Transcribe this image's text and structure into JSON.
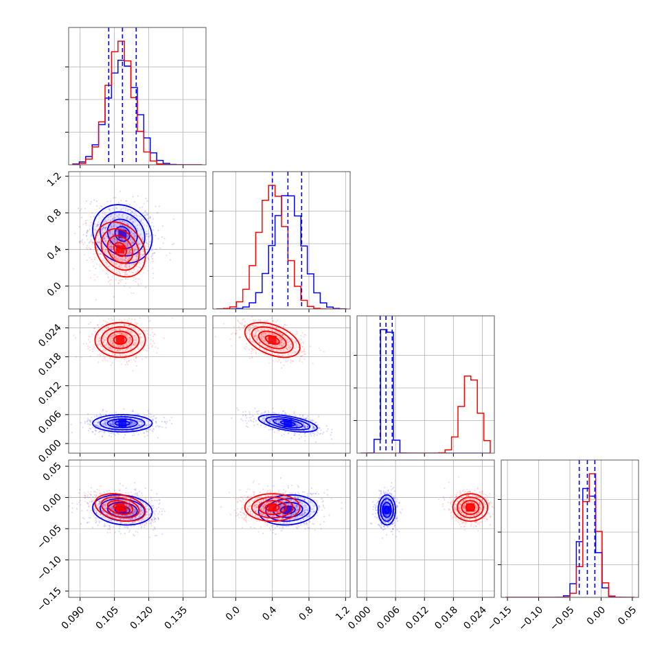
{
  "colors": {
    "series_a": "#0000ff",
    "series_b": "#ff0000",
    "grid": "#b0b0b0",
    "frame": "#555555"
  },
  "chart_data": {
    "type": "corner",
    "grid": true,
    "params": [
      {
        "range": [
          0.085,
          0.145
        ],
        "ticks": [
          0.09,
          0.105,
          0.12,
          0.135
        ],
        "tick_labels": [
          "0.090",
          "0.105",
          "0.120",
          "0.135"
        ]
      },
      {
        "range": [
          -0.25,
          1.25
        ],
        "ticks": [
          0.0,
          0.4,
          0.8,
          1.2
        ],
        "tick_labels": [
          "0.0",
          "0.4",
          "0.8",
          "1.2"
        ]
      },
      {
        "range": [
          -0.002,
          0.0265
        ],
        "ticks": [
          0.0,
          0.006,
          0.012,
          0.018,
          0.024
        ],
        "tick_labels": [
          "0.000",
          "0.006",
          "0.012",
          "0.018",
          "0.024"
        ]
      },
      {
        "range": [
          -0.16,
          0.06
        ],
        "ticks": [
          -0.15,
          -0.1,
          -0.05,
          0.0,
          0.05
        ],
        "tick_labels": [
          "−0.15",
          "−0.10",
          "−0.05",
          "0.00",
          "0.05"
        ]
      }
    ],
    "series": [
      {
        "color": "#0000ff",
        "mean": [
          0.1085,
          0.57,
          0.0042,
          -0.02
        ],
        "std": [
          0.0065,
          0.16,
          0.0009,
          0.012
        ],
        "corr": [
          [
            0,
            1,
            -0.15
          ],
          [
            1,
            2,
            -0.55
          ],
          [
            0,
            3,
            -0.15
          ],
          [
            1,
            3,
            0.1
          ],
          [
            0,
            2,
            0.0
          ],
          [
            2,
            3,
            0.0
          ]
        ],
        "quantiles": [
          [
            0.1025,
            0.1085,
            0.1145
          ],
          [
            0.4,
            0.57,
            0.72
          ],
          [
            0.0028,
            0.004,
            0.0053
          ],
          [
            -0.035,
            -0.022,
            -0.01
          ]
        ]
      },
      {
        "color": "#ff0000",
        "mean": [
          0.1075,
          0.4,
          0.0215,
          -0.016
        ],
        "std": [
          0.0055,
          0.15,
          0.0018,
          0.011
        ],
        "corr": [
          [
            0,
            1,
            -0.25
          ],
          [
            1,
            2,
            -0.45
          ],
          [
            0,
            3,
            -0.3
          ],
          [
            1,
            3,
            0.0
          ],
          [
            0,
            2,
            0.0
          ],
          [
            2,
            3,
            0.0
          ]
        ]
      }
    ]
  }
}
